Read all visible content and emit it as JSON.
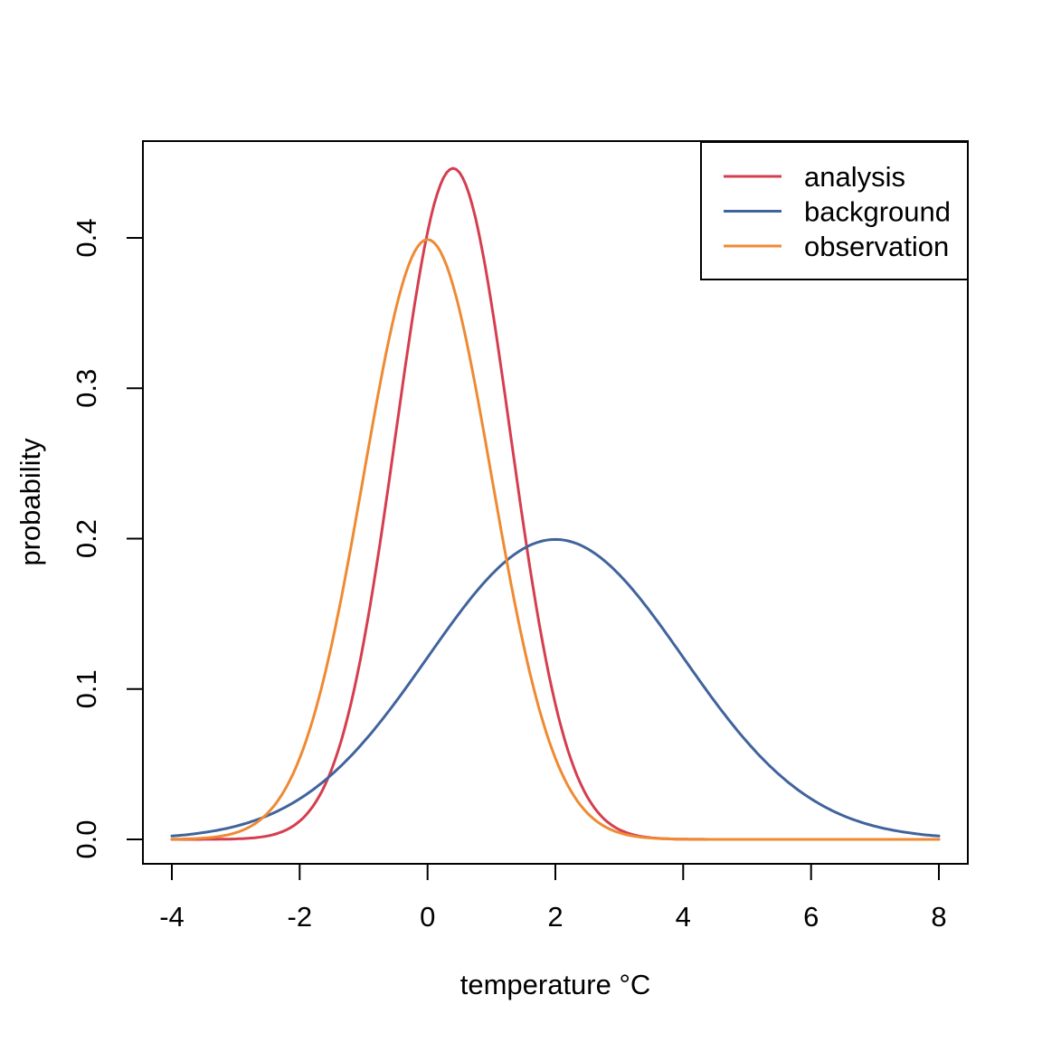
{
  "chart_data": {
    "type": "line",
    "title": "",
    "xlabel": "temperature °C",
    "ylabel": "probability",
    "xlim": [
      -4,
      8
    ],
    "ylim": [
      0.0,
      0.45
    ],
    "grid": false,
    "legend_position": "topright",
    "x_tick_labels": [
      "-4",
      "-2",
      "0",
      "2",
      "4",
      "6",
      "8"
    ],
    "x_tick_values": [
      -4,
      -2,
      0,
      2,
      4,
      6,
      8
    ],
    "y_tick_labels": [
      "0.0",
      "0.1",
      "0.2",
      "0.3",
      "0.4"
    ],
    "y_tick_values": [
      0.0,
      0.1,
      0.2,
      0.3,
      0.4
    ],
    "x_samples": [
      -4,
      -3.5,
      -3,
      -2.5,
      -2,
      -1.5,
      -1,
      -0.5,
      0,
      0.5,
      1,
      1.5,
      2,
      2.5,
      3,
      3.5,
      4,
      4.5,
      5,
      5.5,
      6,
      6.5,
      7,
      7.5,
      8
    ],
    "series": [
      {
        "name": "analysis",
        "color": "#d53e4f",
        "shape": "gaussian",
        "mean": 0.4,
        "sd": 0.894,
        "peak_x": 0.4,
        "peak_y": 0.446,
        "values": [
          0.0,
          0.0,
          0.0003,
          0.0023,
          0.0122,
          0.0467,
          0.131,
          0.2688,
          0.4036,
          0.4433,
          0.3562,
          0.2094,
          0.0901,
          0.0284,
          0.0065,
          0.0011,
          0.0001,
          0.0,
          0.0,
          0.0,
          0.0,
          0.0,
          0.0,
          0.0,
          0.0
        ]
      },
      {
        "name": "background",
        "color": "#41639c",
        "shape": "gaussian",
        "mean": 2,
        "sd": 2,
        "peak_x": 2,
        "peak_y": 0.199,
        "values": [
          0.0022,
          0.0046,
          0.0088,
          0.0159,
          0.027,
          0.0431,
          0.0648,
          0.0913,
          0.121,
          0.1506,
          0.176,
          0.1933,
          0.1995,
          0.1933,
          0.176,
          0.1506,
          0.121,
          0.0913,
          0.0648,
          0.0431,
          0.027,
          0.0159,
          0.0088,
          0.0046,
          0.0022
        ]
      },
      {
        "name": "observation",
        "color": "#ef8a33",
        "shape": "gaussian",
        "mean": 0,
        "sd": 1,
        "peak_x": 0,
        "peak_y": 0.399,
        "values": [
          0.0001,
          0.0009,
          0.0044,
          0.0175,
          0.054,
          0.1295,
          0.242,
          0.3521,
          0.3989,
          0.3521,
          0.242,
          0.1295,
          0.054,
          0.0175,
          0.0044,
          0.0009,
          0.0001,
          0.0,
          0.0,
          0.0,
          0.0,
          0.0,
          0.0,
          0.0,
          0.0
        ]
      }
    ]
  }
}
